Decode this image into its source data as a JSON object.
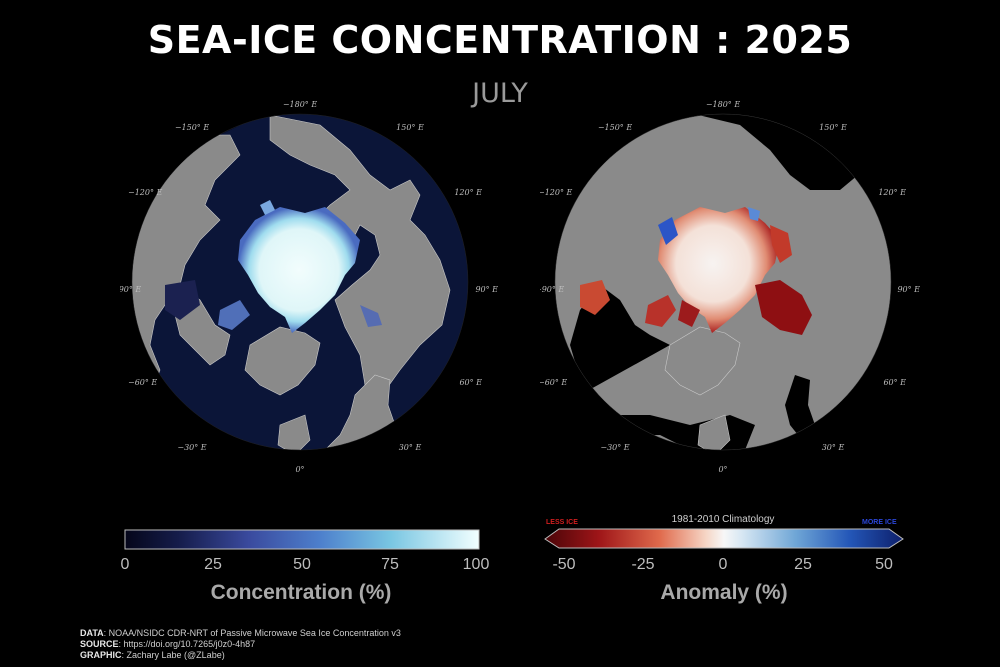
{
  "header": {
    "title": "SEA-ICE CONCENTRATION : 2025",
    "month": "JULY"
  },
  "maps": {
    "longitude_labels": [
      "−180° E",
      "−150° E",
      "150° E",
      "−120° E",
      "120° E",
      "−90° E",
      "90° E",
      "−60° E",
      "60° E",
      "−30° E",
      "30° E",
      "0°"
    ],
    "left_panel": "Concentration",
    "right_panel": "Anomaly"
  },
  "colors": {
    "land": "#8c8c8c",
    "ocean": "#0a1130",
    "ice_high": "#eefcfc",
    "ice_mid": "#6fc9e3",
    "ice_low": "#3b4a9c",
    "anom_neg": "#a01414",
    "anom_pos": "#1c3fb0",
    "less_ice": "#d21f1f",
    "more_ice": "#2b46d8"
  },
  "colorbar_left": {
    "ticks": [
      "0",
      "25",
      "50",
      "75",
      "100"
    ],
    "label": "Concentration (%)"
  },
  "colorbar_right": {
    "ticks": [
      "-50",
      "-25",
      "0",
      "25",
      "50"
    ],
    "label": "Anomaly (%)",
    "climatology": "1981-2010 Climatology",
    "less_ice": "LESS ICE",
    "more_ice": "MORE ICE"
  },
  "credits": {
    "data_key": "DATA",
    "data_val": ": NOAA/NSIDC CDR-NRT of Passive Microwave Sea Ice Concentration v3",
    "source_key": "SOURCE",
    "source_val": ": https://doi.org/10.7265/j0z0-4h87",
    "graphic_key": "GRAPHIC",
    "graphic_val": ": Zachary Labe (@ZLabe)"
  }
}
